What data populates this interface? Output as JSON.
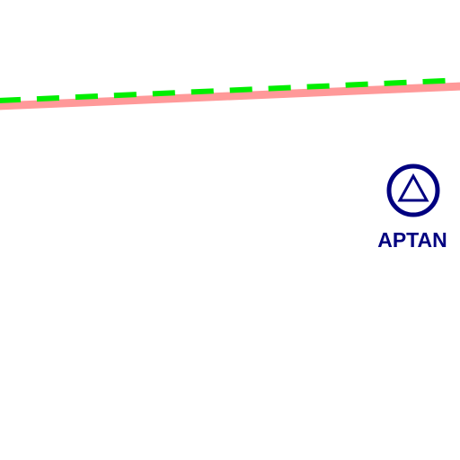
{
  "map": {
    "background_color": "#ffffff",
    "routes": [
      {
        "id": "route-pink",
        "color": "#ff9999",
        "style": "solid"
      },
      {
        "id": "route-green",
        "color": "#00ee00",
        "style": "dashed"
      }
    ],
    "waypoint": {
      "label": "APTAN",
      "icon": "triangle-in-circle-icon",
      "color": "#000080"
    }
  }
}
